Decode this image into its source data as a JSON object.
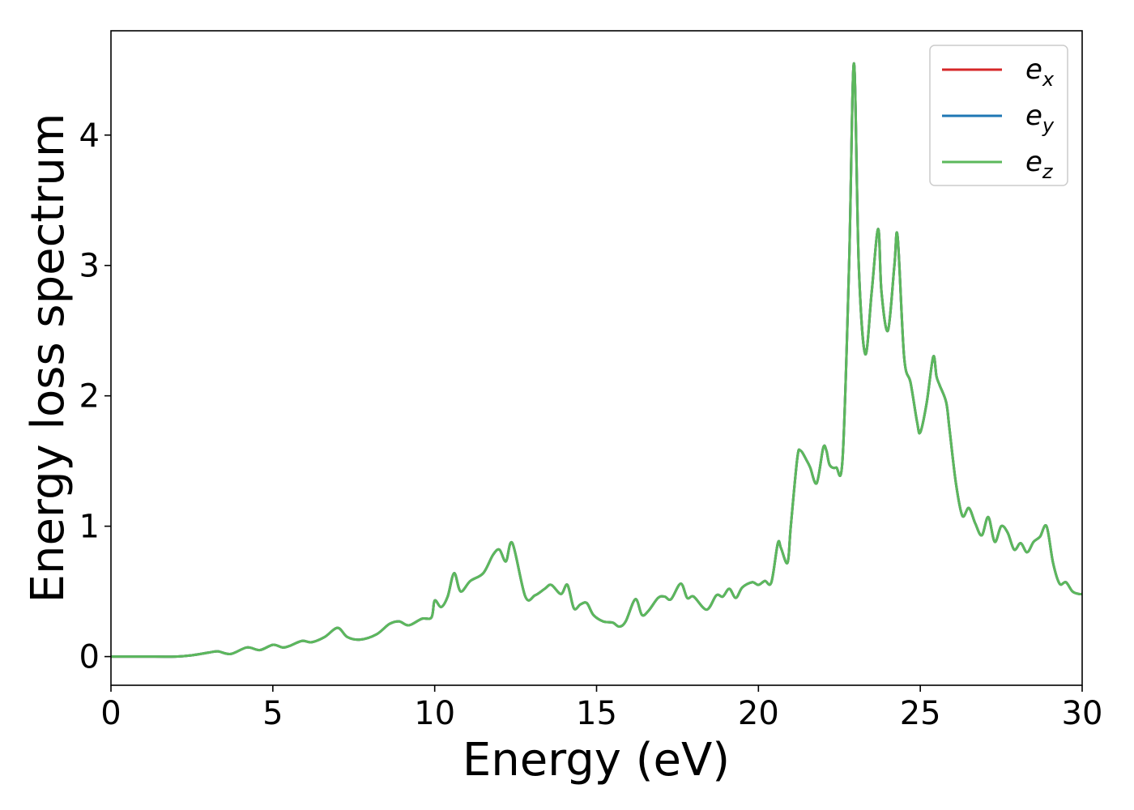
{
  "chart_data": {
    "type": "line",
    "title": "",
    "xlabel": "Energy (eV)",
    "ylabel": "Energy loss spectrum",
    "xlim": [
      0,
      30
    ],
    "ylim": [
      -0.22,
      4.8
    ],
    "xticks": [
      0,
      5,
      10,
      15,
      20,
      25,
      30
    ],
    "yticks": [
      0,
      1,
      2,
      3,
      4
    ],
    "grid": false,
    "legend_position": "top-right",
    "series": [
      {
        "name": "e",
        "sub": "x",
        "color": "#d62728",
        "x": [
          0,
          1,
          2,
          2.5,
          3,
          3.3,
          3.7,
          4.2,
          4.6,
          5,
          5.3,
          5.5,
          5.9,
          6.2,
          6.6,
          7.0,
          7.3,
          7.7,
          8.2,
          8.6,
          8.9,
          9.2,
          9.6,
          9.9,
          10.0,
          10.2,
          10.4,
          10.6,
          10.8,
          11.1,
          11.5,
          11.8,
          12.0,
          12.2,
          12.4,
          12.8,
          13.1,
          13.4,
          13.6,
          13.9,
          14.1,
          14.3,
          14.5,
          14.7,
          14.9,
          15.2,
          15.5,
          15.7,
          15.9,
          16.2,
          16.4,
          16.6,
          16.9,
          17.1,
          17.3,
          17.6,
          17.8,
          18.0,
          18.4,
          18.7,
          18.9,
          19.1,
          19.3,
          19.5,
          19.8,
          20.0,
          20.2,
          20.4,
          20.6,
          20.7,
          20.9,
          21.0,
          21.2,
          21.3,
          21.5,
          21.6,
          21.8,
          22.0,
          22.1,
          22.2,
          22.4,
          22.6,
          22.8,
          22.95,
          23.1,
          23.3,
          23.5,
          23.7,
          23.8,
          24.0,
          24.2,
          24.3,
          24.5,
          24.7,
          24.9,
          25.0,
          25.2,
          25.4,
          25.5,
          25.6,
          25.8,
          25.9,
          26.1,
          26.3,
          26.5,
          26.7,
          26.9,
          27.1,
          27.3,
          27.5,
          27.7,
          27.9,
          28.1,
          28.3,
          28.5,
          28.7,
          28.9,
          29.1,
          29.3,
          29.5,
          29.7,
          29.9,
          30
        ],
        "y": [
          0.0,
          0.0,
          0.0,
          0.01,
          0.03,
          0.04,
          0.02,
          0.07,
          0.05,
          0.09,
          0.07,
          0.08,
          0.12,
          0.11,
          0.15,
          0.22,
          0.15,
          0.13,
          0.17,
          0.25,
          0.27,
          0.24,
          0.29,
          0.3,
          0.43,
          0.38,
          0.46,
          0.64,
          0.5,
          0.58,
          0.64,
          0.78,
          0.82,
          0.73,
          0.87,
          0.46,
          0.47,
          0.52,
          0.55,
          0.48,
          0.55,
          0.37,
          0.4,
          0.41,
          0.32,
          0.27,
          0.26,
          0.23,
          0.27,
          0.44,
          0.32,
          0.35,
          0.45,
          0.46,
          0.44,
          0.56,
          0.45,
          0.46,
          0.36,
          0.47,
          0.46,
          0.52,
          0.45,
          0.53,
          0.57,
          0.55,
          0.58,
          0.57,
          0.87,
          0.83,
          0.72,
          1.0,
          1.52,
          1.58,
          1.5,
          1.45,
          1.33,
          1.6,
          1.58,
          1.47,
          1.45,
          1.52,
          3.0,
          4.55,
          3.0,
          2.32,
          2.8,
          3.28,
          2.8,
          2.5,
          3.0,
          3.22,
          2.3,
          2.1,
          1.8,
          1.72,
          1.95,
          2.3,
          2.15,
          2.08,
          1.95,
          1.75,
          1.33,
          1.08,
          1.14,
          1.02,
          0.93,
          1.07,
          0.88,
          1.0,
          0.95,
          0.82,
          0.87,
          0.8,
          0.88,
          0.92,
          1.0,
          0.72,
          0.56,
          0.57,
          0.5,
          0.48,
          0.48
        ]
      },
      {
        "name": "e",
        "sub": "y",
        "color": "#1f77b4",
        "x": [
          0,
          1,
          2,
          2.5,
          3,
          3.3,
          3.7,
          4.2,
          4.6,
          5,
          5.3,
          5.5,
          5.9,
          6.2,
          6.6,
          7.0,
          7.3,
          7.7,
          8.2,
          8.6,
          8.9,
          9.2,
          9.6,
          9.9,
          10.0,
          10.2,
          10.4,
          10.6,
          10.8,
          11.1,
          11.5,
          11.8,
          12.0,
          12.2,
          12.4,
          12.8,
          13.1,
          13.4,
          13.6,
          13.9,
          14.1,
          14.3,
          14.5,
          14.7,
          14.9,
          15.2,
          15.5,
          15.7,
          15.9,
          16.2,
          16.4,
          16.6,
          16.9,
          17.1,
          17.3,
          17.6,
          17.8,
          18.0,
          18.4,
          18.7,
          18.9,
          19.1,
          19.3,
          19.5,
          19.8,
          20.0,
          20.2,
          20.4,
          20.6,
          20.7,
          20.9,
          21.0,
          21.2,
          21.3,
          21.5,
          21.6,
          21.8,
          22.0,
          22.1,
          22.2,
          22.4,
          22.6,
          22.8,
          22.95,
          23.1,
          23.3,
          23.5,
          23.7,
          23.8,
          24.0,
          24.2,
          24.3,
          24.5,
          24.7,
          24.9,
          25.0,
          25.2,
          25.4,
          25.5,
          25.6,
          25.8,
          25.9,
          26.1,
          26.3,
          26.5,
          26.7,
          26.9,
          27.1,
          27.3,
          27.5,
          27.7,
          27.9,
          28.1,
          28.3,
          28.5,
          28.7,
          28.9,
          29.1,
          29.3,
          29.5,
          29.7,
          29.9,
          30
        ],
        "y": [
          0.0,
          0.0,
          0.0,
          0.01,
          0.03,
          0.04,
          0.02,
          0.07,
          0.05,
          0.09,
          0.07,
          0.08,
          0.12,
          0.11,
          0.15,
          0.22,
          0.15,
          0.13,
          0.17,
          0.25,
          0.27,
          0.24,
          0.29,
          0.3,
          0.43,
          0.38,
          0.46,
          0.64,
          0.5,
          0.58,
          0.64,
          0.78,
          0.82,
          0.73,
          0.87,
          0.46,
          0.47,
          0.52,
          0.55,
          0.48,
          0.55,
          0.37,
          0.4,
          0.41,
          0.32,
          0.27,
          0.26,
          0.23,
          0.27,
          0.44,
          0.32,
          0.35,
          0.45,
          0.46,
          0.44,
          0.56,
          0.45,
          0.46,
          0.36,
          0.47,
          0.46,
          0.52,
          0.45,
          0.53,
          0.57,
          0.55,
          0.58,
          0.57,
          0.87,
          0.83,
          0.72,
          1.0,
          1.52,
          1.58,
          1.5,
          1.45,
          1.33,
          1.6,
          1.58,
          1.47,
          1.45,
          1.52,
          3.0,
          4.55,
          3.0,
          2.32,
          2.8,
          3.28,
          2.8,
          2.5,
          3.0,
          3.22,
          2.3,
          2.1,
          1.8,
          1.72,
          1.95,
          2.3,
          2.15,
          2.08,
          1.95,
          1.75,
          1.33,
          1.08,
          1.14,
          1.02,
          0.93,
          1.07,
          0.88,
          1.0,
          0.95,
          0.82,
          0.87,
          0.8,
          0.88,
          0.92,
          1.0,
          0.72,
          0.56,
          0.57,
          0.5,
          0.48,
          0.48
        ]
      },
      {
        "name": "e",
        "sub": "z",
        "color": "#5cb85c",
        "x": [
          0,
          1,
          2,
          2.5,
          3,
          3.3,
          3.7,
          4.2,
          4.6,
          5,
          5.3,
          5.5,
          5.9,
          6.2,
          6.6,
          7.0,
          7.3,
          7.7,
          8.2,
          8.6,
          8.9,
          9.2,
          9.6,
          9.9,
          10.0,
          10.2,
          10.4,
          10.6,
          10.8,
          11.1,
          11.5,
          11.8,
          12.0,
          12.2,
          12.4,
          12.8,
          13.1,
          13.4,
          13.6,
          13.9,
          14.1,
          14.3,
          14.5,
          14.7,
          14.9,
          15.2,
          15.5,
          15.7,
          15.9,
          16.2,
          16.4,
          16.6,
          16.9,
          17.1,
          17.3,
          17.6,
          17.8,
          18.0,
          18.4,
          18.7,
          18.9,
          19.1,
          19.3,
          19.5,
          19.8,
          20.0,
          20.2,
          20.4,
          20.6,
          20.7,
          20.9,
          21.0,
          21.2,
          21.3,
          21.5,
          21.6,
          21.8,
          22.0,
          22.1,
          22.2,
          22.4,
          22.6,
          22.8,
          22.95,
          23.1,
          23.3,
          23.5,
          23.7,
          23.8,
          24.0,
          24.2,
          24.3,
          24.5,
          24.7,
          24.9,
          25.0,
          25.2,
          25.4,
          25.5,
          25.6,
          25.8,
          25.9,
          26.1,
          26.3,
          26.5,
          26.7,
          26.9,
          27.1,
          27.3,
          27.5,
          27.7,
          27.9,
          28.1,
          28.3,
          28.5,
          28.7,
          28.9,
          29.1,
          29.3,
          29.5,
          29.7,
          29.9,
          30
        ],
        "y": [
          0.0,
          0.0,
          0.0,
          0.01,
          0.03,
          0.04,
          0.02,
          0.07,
          0.05,
          0.09,
          0.07,
          0.08,
          0.12,
          0.11,
          0.15,
          0.22,
          0.15,
          0.13,
          0.17,
          0.25,
          0.27,
          0.24,
          0.29,
          0.3,
          0.43,
          0.38,
          0.46,
          0.64,
          0.5,
          0.58,
          0.64,
          0.78,
          0.82,
          0.73,
          0.87,
          0.46,
          0.47,
          0.52,
          0.55,
          0.48,
          0.55,
          0.37,
          0.4,
          0.41,
          0.32,
          0.27,
          0.26,
          0.23,
          0.27,
          0.44,
          0.32,
          0.35,
          0.45,
          0.46,
          0.44,
          0.56,
          0.45,
          0.46,
          0.36,
          0.47,
          0.46,
          0.52,
          0.45,
          0.53,
          0.57,
          0.55,
          0.58,
          0.57,
          0.87,
          0.83,
          0.72,
          1.0,
          1.52,
          1.58,
          1.5,
          1.45,
          1.33,
          1.6,
          1.58,
          1.47,
          1.45,
          1.52,
          3.0,
          4.55,
          3.0,
          2.32,
          2.8,
          3.28,
          2.8,
          2.5,
          3.0,
          3.22,
          2.3,
          2.1,
          1.8,
          1.72,
          1.95,
          2.3,
          2.15,
          2.08,
          1.95,
          1.75,
          1.33,
          1.08,
          1.14,
          1.02,
          0.93,
          1.07,
          0.88,
          1.0,
          0.95,
          0.82,
          0.87,
          0.8,
          0.88,
          0.92,
          1.0,
          0.72,
          0.56,
          0.57,
          0.5,
          0.48,
          0.48
        ]
      }
    ]
  }
}
